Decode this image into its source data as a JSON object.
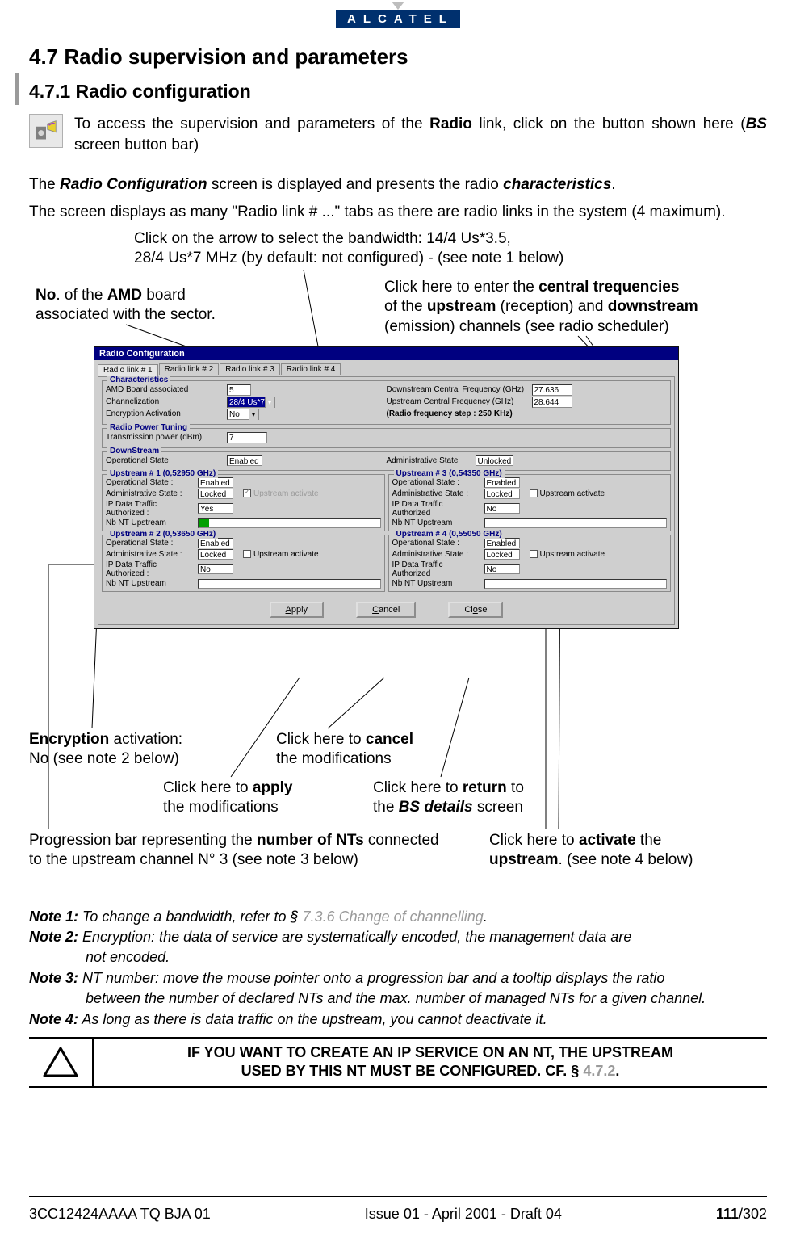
{
  "logo": "ALCATEL",
  "section_heading": "4.7   Radio supervision and parameters",
  "subsection_heading": "4.7.1     Radio configuration",
  "intro_text": "To access the supervision and parameters of the Radio link, click on the button shown here (BS screen button bar)",
  "para1": "The Radio Configuration screen is displayed and presents the radio characteristics.",
  "para2": "The screen displays as many \"Radio link # ...\" tabs as there are radio links in the system (4 maximum).",
  "annotations": {
    "bandwidth_line1": "Click on the arrow to select the bandwidth: 14/4 Us*3.5,",
    "bandwidth_line2": "28/4 Us*7 MHz (by default: not configured) - (see note 1 below)",
    "amd_line1": "No. of the AMD board",
    "amd_line2": "associated with the sector.",
    "freq_line1": "Click here to enter  the central trequencies",
    "freq_line2": "of the upstream (reception) and downstream",
    "freq_line3": "(emission) channels (see radio scheduler)",
    "encryption_line1": "Encryption activation:",
    "encryption_line2": "No (see note 2 below)",
    "cancel_line1": "Click here to cancel",
    "cancel_line2": "the modifications",
    "apply_line1": "Click here to apply",
    "apply_line2": "the modifications",
    "return_line1": "Click here to return to",
    "return_line2": "the BS details screen",
    "prog_line1": "Progression bar representing the number of NTs connected",
    "prog_line2": "to the upstream channel N° 3 (see note 3 below)",
    "activate_line1": "Click here to activate the",
    "activate_line2": "upstream. (see note 4 below)"
  },
  "rc": {
    "title": "Radio Configuration",
    "tabs": [
      "Radio link # 1",
      "Radio link # 2",
      "Radio link # 3",
      "Radio link # 4"
    ],
    "characteristics_title": "Characteristics",
    "amd_label": "AMD Board associated",
    "amd_value": "5",
    "chan_label": "Channelization",
    "chan_value": "28/4 Us*7",
    "enc_label": "Encryption Activation",
    "enc_value": "No",
    "down_freq_label": "Downstream Central Frequency (GHz)",
    "down_freq_value": "27.636",
    "up_freq_label": "Upstream Central Frequency (GHz)",
    "up_freq_value": "28.644",
    "step_label": "(Radio frequency step : 250 KHz)",
    "power_title": "Radio Power Tuning",
    "power_label": "Transmission power (dBm)",
    "power_value": "7",
    "downstream_title": "DownStream",
    "op_state_label": "Operational State",
    "op_state_value": "Enabled",
    "admin_state_label": "Administrative State",
    "admin_state_value": "Unlocked",
    "upstreams": [
      {
        "title": "Upstream # 1 (0,52950 GHz)",
        "op": "Enabled",
        "adm": "Locked",
        "ip": "Yes",
        "nb_fill": 6,
        "chk": true,
        "chk_grey": true
      },
      {
        "title": "Upstream # 2 (0,53650 GHz)",
        "op": "Enabled",
        "adm": "Locked",
        "ip": "No",
        "nb_fill": 0,
        "chk": false,
        "chk_grey": false
      },
      {
        "title": "Upstream # 3 (0,54350 GHz)",
        "op": "Enabled",
        "adm": "Locked",
        "ip": "No",
        "nb_fill": 0,
        "chk": false,
        "chk_grey": false
      },
      {
        "title": "Upstream # 4 (0,55050 GHz)",
        "op": "Enabled",
        "adm": "Locked",
        "ip": "No",
        "nb_fill": 0,
        "chk": false,
        "chk_grey": false
      }
    ],
    "mini_labels": {
      "op": "Operational State :",
      "adm": "Administrative State :",
      "ip": "IP Data Traffic Authorized :",
      "nb": "Nb NT Upstream",
      "chk": "Upstream activate"
    },
    "buttons": {
      "apply": "Apply",
      "cancel": "Cancel",
      "close": "Close"
    }
  },
  "notes": {
    "n1_a": "Note 1:",
    "n1_b": " To change a bandwidth, refer to § ",
    "n1_link": "7.3.6 Change of channelling",
    "n1_c": ".",
    "n2_a": "Note 2:",
    "n2_b": " Encryption: the data of service are systematically encoded, the management data are not encoded.",
    "n3_a": "Note 3:",
    "n3_b": " NT number: move the mouse pointer onto a progression bar and a tooltip displays the ratio between the number of declared NTs and the max. number of managed NTs for a given channel.",
    "n4_a": "Note 4:",
    "n4_b": " As long as there is data traffic on the upstream, you cannot deactivate it."
  },
  "warning": "IF YOU WANT TO CREATE AN IP SERVICE ON AN NT, THE UPSTREAM USED BY THIS NT MUST BE CONFIGURED. CF. § 4.7.2.",
  "footer": {
    "left": "3CC12424AAAA TQ BJA 01",
    "mid": "Issue 01 - April 2001 - Draft 04",
    "page_bold": "111",
    "page_total": "/302"
  },
  "leader_color": "#000000"
}
